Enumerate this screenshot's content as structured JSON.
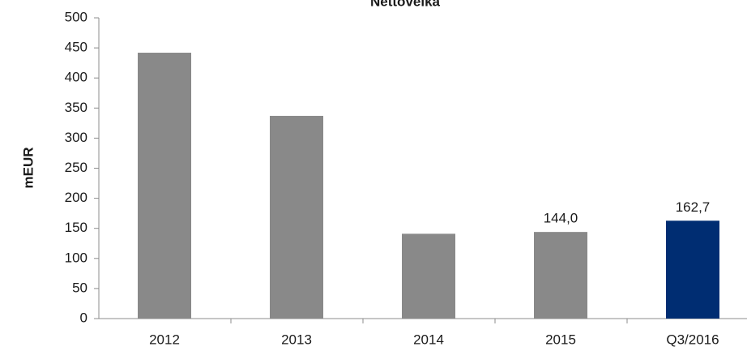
{
  "chart_data": {
    "type": "bar",
    "title": "Nettovelka",
    "y_label": "mEUR",
    "categories": [
      "2012",
      "2013",
      "2014",
      "2015",
      "Q3/2016"
    ],
    "values": [
      442,
      337,
      141,
      144.0,
      162.7
    ],
    "value_labels": [
      null,
      null,
      null,
      "144,0",
      "162,7"
    ],
    "colors": [
      "#898989",
      "#898989",
      "#898989",
      "#898989",
      "#002d72"
    ],
    "ylim": [
      0,
      500
    ],
    "yticks": [
      0,
      50,
      100,
      150,
      200,
      250,
      300,
      350,
      400,
      450,
      500
    ],
    "grid": false
  }
}
